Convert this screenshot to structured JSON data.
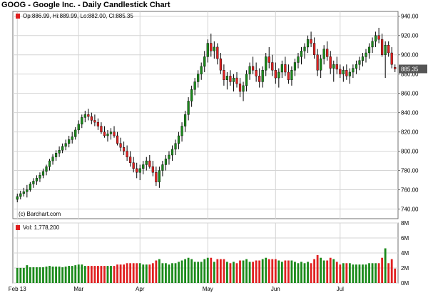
{
  "header": {
    "title": "GOOG - Google Inc. - Daily Candlestick Chart"
  },
  "price_legend": "Op:886.99, Hi:889.99, Lo:882.00, Cl:885.35",
  "volume_legend": "Vol: 1,778,200",
  "copyright": "(c) Barchart.com",
  "colors": {
    "up": "#1a8a1a",
    "down": "#e02020",
    "grid": "#d4d4d4",
    "frame": "#707070",
    "last_label_bg": "#555555"
  },
  "chart_data": [
    {
      "type": "candlestick",
      "ylim": [
        730,
        945
      ],
      "yticks": [
        "940.00",
        "920.00",
        "900.00",
        "880.00",
        "860.00",
        "840.00",
        "820.00",
        "800.00",
        "780.00",
        "760.00",
        "740.00"
      ],
      "x_labels": [
        "Feb 13",
        "Mar",
        "Apr",
        "May",
        "Jun",
        "Jul"
      ],
      "x_label_index": [
        0,
        19,
        38,
        59,
        80,
        100
      ],
      "last_price_label": "885.35",
      "last_price": 885.35,
      "candles": [
        [
          750,
          756,
          747,
          753
        ],
        [
          753,
          759,
          750,
          756
        ],
        [
          756,
          762,
          753,
          758
        ],
        [
          758,
          765,
          752,
          760
        ],
        [
          760,
          768,
          758,
          766
        ],
        [
          766,
          772,
          762,
          769
        ],
        [
          769,
          775,
          765,
          772
        ],
        [
          772,
          778,
          768,
          775
        ],
        [
          775,
          782,
          772,
          779
        ],
        [
          779,
          786,
          775,
          784
        ],
        [
          784,
          792,
          780,
          790
        ],
        [
          790,
          797,
          786,
          794
        ],
        [
          794,
          801,
          790,
          798
        ],
        [
          798,
          805,
          794,
          801
        ],
        [
          801,
          808,
          798,
          805
        ],
        [
          805,
          812,
          801,
          808
        ],
        [
          808,
          816,
          804,
          812
        ],
        [
          812,
          820,
          808,
          815
        ],
        [
          815,
          825,
          812,
          822
        ],
        [
          822,
          832,
          818,
          828
        ],
        [
          828,
          838,
          824,
          835
        ],
        [
          835,
          842,
          830,
          838
        ],
        [
          838,
          844,
          832,
          836
        ],
        [
          836,
          840,
          828,
          832
        ],
        [
          832,
          838,
          826,
          830
        ],
        [
          830,
          834,
          822,
          826
        ],
        [
          826,
          830,
          818,
          820
        ],
        [
          820,
          826,
          814,
          816
        ],
        [
          816,
          822,
          810,
          818
        ],
        [
          818,
          824,
          812,
          820
        ],
        [
          820,
          826,
          814,
          816
        ],
        [
          816,
          820,
          806,
          808
        ],
        [
          808,
          814,
          800,
          804
        ],
        [
          804,
          810,
          796,
          800
        ],
        [
          800,
          806,
          790,
          794
        ],
        [
          794,
          800,
          784,
          788
        ],
        [
          788,
          794,
          778,
          782
        ],
        [
          782,
          788,
          772,
          778
        ],
        [
          778,
          786,
          770,
          782
        ],
        [
          782,
          790,
          776,
          786
        ],
        [
          786,
          794,
          780,
          790
        ],
        [
          790,
          796,
          782,
          784
        ],
        [
          784,
          790,
          774,
          778
        ],
        [
          778,
          784,
          764,
          768
        ],
        [
          768,
          784,
          762,
          780
        ],
        [
          780,
          790,
          774,
          786
        ],
        [
          786,
          796,
          780,
          792
        ],
        [
          792,
          800,
          786,
          796
        ],
        [
          796,
          806,
          790,
          802
        ],
        [
          802,
          812,
          796,
          808
        ],
        [
          808,
          820,
          802,
          816
        ],
        [
          816,
          830,
          810,
          826
        ],
        [
          826,
          842,
          820,
          838
        ],
        [
          838,
          856,
          832,
          852
        ],
        [
          852,
          868,
          846,
          864
        ],
        [
          864,
          876,
          858,
          872
        ],
        [
          872,
          884,
          866,
          880
        ],
        [
          880,
          892,
          874,
          888
        ],
        [
          888,
          904,
          882,
          898
        ],
        [
          898,
          916,
          892,
          912
        ],
        [
          912,
          922,
          898,
          904
        ],
        [
          904,
          914,
          896,
          908
        ],
        [
          908,
          912,
          890,
          896
        ],
        [
          896,
          902,
          880,
          884
        ],
        [
          884,
          890,
          868,
          874
        ],
        [
          874,
          882,
          864,
          878
        ],
        [
          878,
          884,
          868,
          872
        ],
        [
          872,
          880,
          862,
          876
        ],
        [
          876,
          882,
          866,
          870
        ],
        [
          870,
          876,
          856,
          862
        ],
        [
          862,
          872,
          852,
          868
        ],
        [
          868,
          884,
          862,
          880
        ],
        [
          880,
          892,
          874,
          888
        ],
        [
          888,
          898,
          880,
          884
        ],
        [
          884,
          892,
          872,
          878
        ],
        [
          878,
          886,
          866,
          872
        ],
        [
          872,
          888,
          866,
          884
        ],
        [
          884,
          902,
          878,
          898
        ],
        [
          898,
          908,
          886,
          892
        ],
        [
          892,
          900,
          878,
          884
        ],
        [
          884,
          892,
          870,
          876
        ],
        [
          876,
          886,
          866,
          882
        ],
        [
          882,
          894,
          876,
          890
        ],
        [
          890,
          898,
          878,
          882
        ],
        [
          882,
          890,
          870,
          874
        ],
        [
          874,
          888,
          868,
          884
        ],
        [
          884,
          896,
          878,
          892
        ],
        [
          892,
          902,
          886,
          898
        ],
        [
          898,
          908,
          890,
          904
        ],
        [
          904,
          912,
          896,
          908
        ],
        [
          908,
          920,
          902,
          916
        ],
        [
          916,
          924,
          908,
          912
        ],
        [
          912,
          918,
          896,
          900
        ],
        [
          900,
          906,
          878,
          884
        ],
        [
          884,
          900,
          876,
          896
        ],
        [
          896,
          910,
          890,
          906
        ],
        [
          906,
          914,
          894,
          898
        ],
        [
          898,
          904,
          880,
          886
        ],
        [
          886,
          894,
          872,
          890
        ],
        [
          890,
          898,
          880,
          885
        ],
        [
          885,
          890,
          876,
          880
        ],
        [
          880,
          888,
          872,
          884
        ],
        [
          884,
          890,
          874,
          878
        ],
        [
          878,
          886,
          870,
          882
        ],
        [
          882,
          890,
          876,
          886
        ],
        [
          886,
          894,
          880,
          890
        ],
        [
          890,
          898,
          884,
          894
        ],
        [
          894,
          902,
          888,
          898
        ],
        [
          898,
          906,
          892,
          902
        ],
        [
          902,
          912,
          896,
          908
        ],
        [
          908,
          918,
          902,
          914
        ],
        [
          914,
          924,
          908,
          920
        ],
        [
          920,
          928,
          912,
          916
        ],
        [
          916,
          922,
          898,
          900
        ],
        [
          900,
          914,
          876,
          910
        ],
        [
          910,
          914,
          898,
          902
        ],
        [
          902,
          908,
          886,
          890
        ],
        [
          887,
          890,
          882,
          885.35
        ]
      ]
    },
    {
      "type": "bar",
      "name": "Volume",
      "ylim": [
        0,
        8
      ],
      "yticks": [
        "8M",
        "6M",
        "4M",
        "2M",
        "0M"
      ]
    }
  ]
}
